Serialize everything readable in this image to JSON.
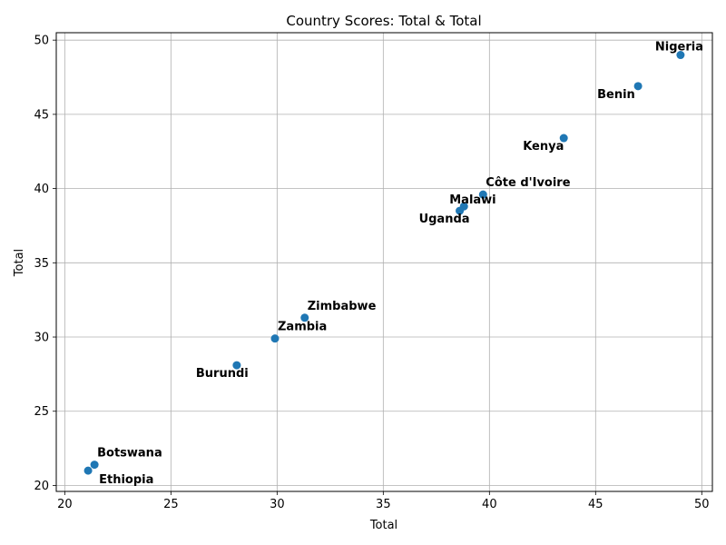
{
  "chart_data": {
    "type": "scatter",
    "title": "Country Scores: Total & Total",
    "xlabel": "Total",
    "ylabel": "Total",
    "xlim": [
      19.6,
      50.5
    ],
    "ylim": [
      19.6,
      50.5
    ],
    "xticks": [
      20,
      25,
      30,
      35,
      40,
      45,
      50
    ],
    "yticks": [
      20,
      25,
      30,
      35,
      40,
      45,
      50
    ],
    "grid": true,
    "marker_color": "#1f77b4",
    "points": [
      {
        "label": "Nigeria",
        "x": 49.0,
        "y": 49.0,
        "label_pos": "above-left"
      },
      {
        "label": "Benin",
        "x": 47.0,
        "y": 46.9,
        "label_pos": "below-left"
      },
      {
        "label": "Kenya",
        "x": 43.5,
        "y": 43.4,
        "label_pos": "below-left"
      },
      {
        "label": "Côte d'Ivoire",
        "x": 39.7,
        "y": 39.6,
        "label_pos": "above-right"
      },
      {
        "label": "Malawi",
        "x": 38.8,
        "y": 38.8,
        "label_pos": "above"
      },
      {
        "label": "Uganda",
        "x": 38.6,
        "y": 38.5,
        "label_pos": "below-left"
      },
      {
        "label": "Zimbabwe",
        "x": 31.3,
        "y": 31.3,
        "label_pos": "above-right"
      },
      {
        "label": "Zambia",
        "x": 29.9,
        "y": 29.9,
        "label_pos": "above-right"
      },
      {
        "label": "Burundi",
        "x": 28.1,
        "y": 28.1,
        "label_pos": "below-left"
      },
      {
        "label": "Botswana",
        "x": 21.4,
        "y": 21.4,
        "label_pos": "above-right"
      },
      {
        "label": "Ethiopia",
        "x": 21.1,
        "y": 21.0,
        "label_pos": "below-right"
      }
    ]
  }
}
